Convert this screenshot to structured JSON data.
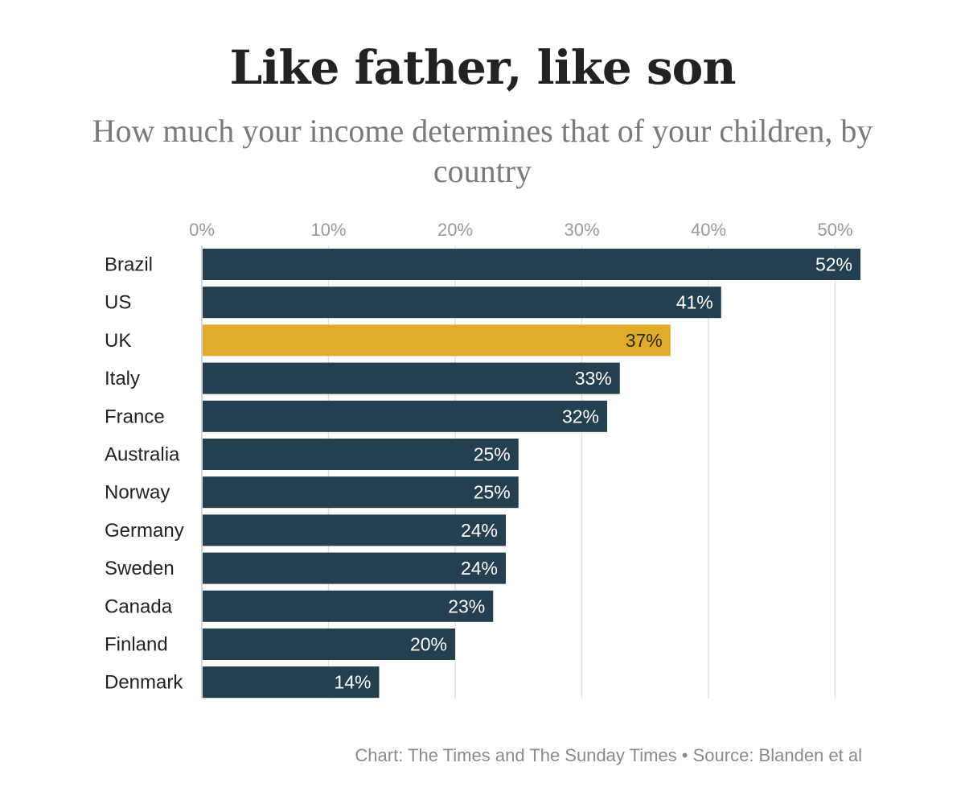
{
  "chart_data": {
    "type": "bar",
    "orientation": "horizontal",
    "title": "Like father, like son",
    "subtitle": "How much your income determines that of your children, by country",
    "categories": [
      "Brazil",
      "US",
      "UK",
      "Italy",
      "France",
      "Australia",
      "Norway",
      "Germany",
      "Sweden",
      "Canada",
      "Finland",
      "Denmark"
    ],
    "values": [
      52,
      41,
      37,
      33,
      32,
      25,
      25,
      24,
      24,
      23,
      20,
      14
    ],
    "value_labels": [
      "52%",
      "41%",
      "37%",
      "33%",
      "32%",
      "25%",
      "25%",
      "24%",
      "24%",
      "23%",
      "20%",
      "14%"
    ],
    "highlight": "UK",
    "xlim": [
      0,
      52
    ],
    "xticks": [
      0,
      10,
      20,
      30,
      40,
      50
    ],
    "xtick_labels": [
      "0%",
      "10%",
      "20%",
      "30%",
      "40%",
      "50%"
    ],
    "axis_position": "top",
    "grid": true,
    "xlabel": "",
    "ylabel": ""
  },
  "colors": {
    "bar": "#243f4f",
    "highlight_bar": "#e0ab28",
    "label_on_bar": "#ffffff",
    "label_on_highlight": "#2a2a2a",
    "grid": "#e2e2e2",
    "axis": "#cccccc"
  },
  "footer": {
    "credit": "Chart: The Times and The Sunday Times • Source: Blanden et al"
  }
}
